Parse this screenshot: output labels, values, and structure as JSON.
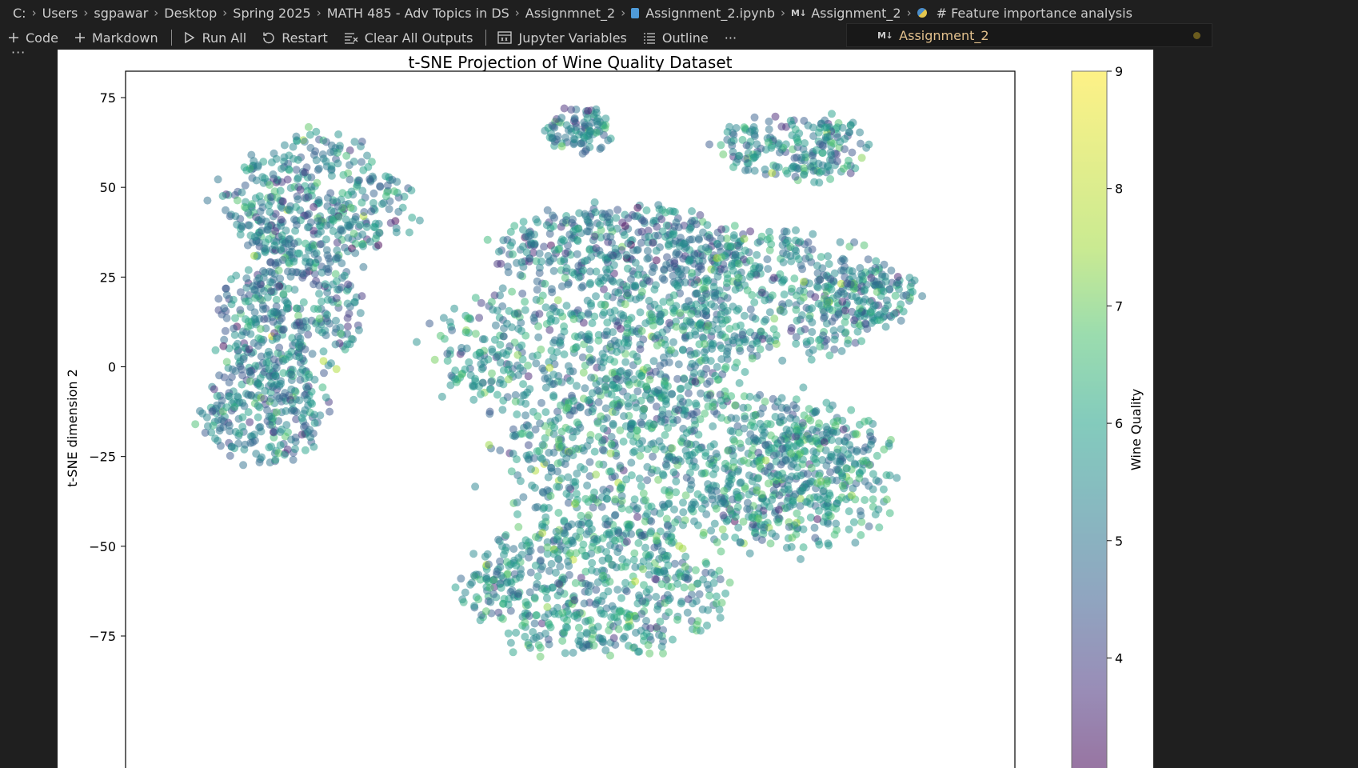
{
  "breadcrumb": {
    "items": [
      "C:",
      "Users",
      "sgpawar",
      "Desktop",
      "Spring 2025",
      "MATH 485 - Adv Topics in DS",
      "Assignmnet_2",
      "Assignment_2.ipynb",
      "Assignment_2",
      "# Feature importance analysis"
    ],
    "icons": {
      "file": "notebook-file-icon",
      "markdown": "M↓",
      "python": "python-icon"
    }
  },
  "toolbar": {
    "code": "Code",
    "markdown": "Markdown",
    "run_all": "Run All",
    "restart": "Restart",
    "clear_outputs": "Clear All Outputs",
    "variables": "Jupyter Variables",
    "outline": "Outline",
    "more": "···"
  },
  "kernel": {
    "icon": "M↓",
    "name": "Assignment_2",
    "color": "#e2c08d"
  },
  "cell": {
    "more": "···"
  },
  "chart_data": {
    "type": "scatter",
    "title": "t-SNE Projection of Wine Quality Dataset",
    "xlabel": "",
    "ylabel": "t-SNE dimension 2",
    "ylim": [
      -88,
      83
    ],
    "yticks": [
      75,
      50,
      25,
      0,
      -25,
      -50,
      -75
    ],
    "xlim": [
      -100,
      100
    ],
    "colorbar": {
      "label": "Wine Quality",
      "ticks": [
        4,
        5,
        6,
        7,
        8,
        9
      ],
      "range": [
        3,
        9
      ],
      "colormap": "viridis",
      "alpha": 0.5
    },
    "clusters": [
      {
        "cx": -64,
        "cy": 46,
        "rx": 22,
        "ry": 18,
        "n": 420,
        "mean_q": 5.6
      },
      {
        "cx": -70,
        "cy": 14,
        "rx": 17,
        "ry": 18,
        "n": 330,
        "mean_q": 5.5
      },
      {
        "cx": -77,
        "cy": -12,
        "rx": 15,
        "ry": 14,
        "n": 260,
        "mean_q": 5.5
      },
      {
        "cx": 2,
        "cy": 66,
        "rx": 8,
        "ry": 6,
        "n": 90,
        "mean_q": 5.6
      },
      {
        "cx": 56,
        "cy": 61,
        "rx": 18,
        "ry": 9,
        "n": 200,
        "mean_q": 5.8
      },
      {
        "cx": 14,
        "cy": 33,
        "rx": 30,
        "ry": 12,
        "n": 420,
        "mean_q": 5.4
      },
      {
        "cx": 52,
        "cy": 20,
        "rx": 28,
        "ry": 17,
        "n": 360,
        "mean_q": 5.9
      },
      {
        "cx": 74,
        "cy": 20,
        "rx": 13,
        "ry": 8,
        "n": 140,
        "mean_q": 5.6
      },
      {
        "cx": 6,
        "cy": 4,
        "rx": 38,
        "ry": 19,
        "n": 620,
        "mean_q": 5.9
      },
      {
        "cx": 28,
        "cy": -28,
        "rx": 44,
        "ry": 22,
        "n": 760,
        "mean_q": 6.0
      },
      {
        "cx": 6,
        "cy": -62,
        "rx": 32,
        "ry": 18,
        "n": 560,
        "mean_q": 6.1
      },
      {
        "cx": 58,
        "cy": -30,
        "rx": 22,
        "ry": 20,
        "n": 300,
        "mean_q": 6.0
      }
    ]
  }
}
